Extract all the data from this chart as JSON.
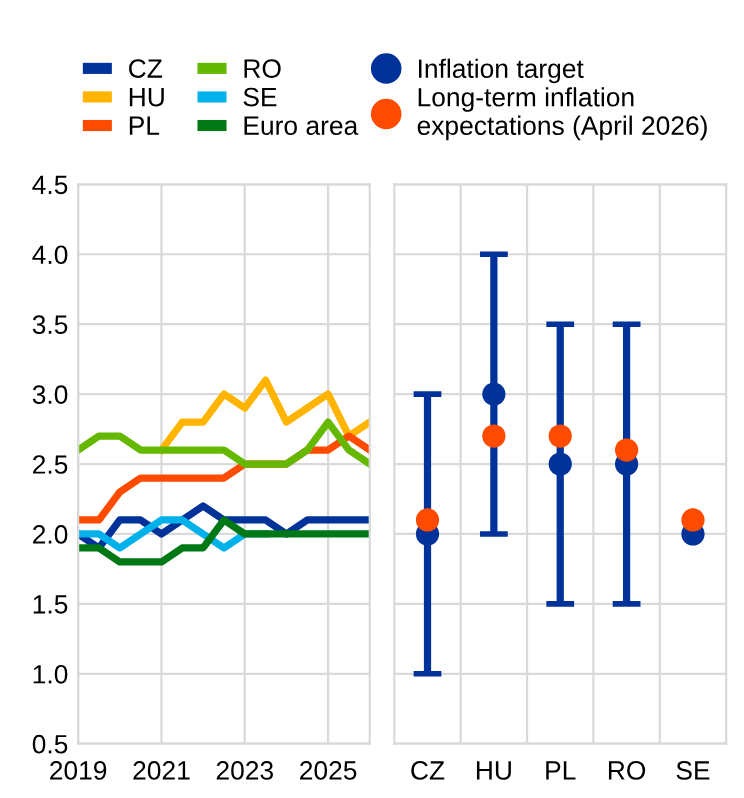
{
  "chart_data": [
    {
      "type": "line",
      "x": [
        2019,
        2019.5,
        2020,
        2020.5,
        2021,
        2021.5,
        2022,
        2022.5,
        2023,
        2023.5,
        2024,
        2024.5,
        2025,
        2025.5,
        2026
      ],
      "xlim": [
        2019,
        2026
      ],
      "xticks": [
        2019,
        2021,
        2023,
        2025
      ],
      "ylim": [
        0.5,
        4.5
      ],
      "yticks": [
        0.5,
        {
          "value": 1,
          "label": "1.0"
        },
        1.5,
        {
          "value": 2,
          "label": "2.0"
        },
        2.5,
        {
          "value": 3,
          "label": "3.0"
        },
        3.5,
        {
          "value": 4,
          "label": "4.0"
        },
        4.5
      ],
      "grid": true,
      "legend": "top",
      "line_style": "solid",
      "marker": "none",
      "series": [
        {
          "name": "CZ",
          "color": "#003299",
          "values": [
            2.0,
            1.9,
            2.1,
            2.1,
            2.0,
            2.1,
            2.2,
            2.1,
            2.1,
            2.1,
            2.0,
            2.1,
            2.1,
            2.1,
            2.1
          ]
        },
        {
          "name": "HU",
          "color": "#ffb400",
          "values": [
            null,
            null,
            null,
            null,
            2.6,
            2.8,
            2.8,
            3.0,
            2.9,
            3.1,
            2.8,
            2.9,
            3.0,
            2.7,
            2.8
          ]
        },
        {
          "name": "PL",
          "color": "#ff4b00",
          "values": [
            2.1,
            2.1,
            2.3,
            2.4,
            2.4,
            2.4,
            2.4,
            2.4,
            2.5,
            2.5,
            2.5,
            2.6,
            2.6,
            2.7,
            2.6
          ]
        },
        {
          "name": "RO",
          "color": "#65b800",
          "values": [
            2.6,
            2.7,
            2.7,
            2.6,
            2.6,
            2.6,
            2.6,
            2.6,
            2.5,
            2.5,
            2.5,
            2.6,
            2.8,
            2.6,
            2.5
          ]
        },
        {
          "name": "SE",
          "color": "#00b1ea",
          "values": [
            2.0,
            2.0,
            1.9,
            2.0,
            2.1,
            2.1,
            2.0,
            1.9,
            2.0,
            2.0,
            null,
            null,
            null,
            null,
            null
          ]
        },
        {
          "name": "Euro area",
          "color": "#007816",
          "values": [
            1.9,
            1.9,
            1.8,
            1.8,
            1.8,
            1.9,
            1.9,
            2.1,
            2.0,
            2.0,
            2.0,
            2.0,
            2.0,
            2.0,
            2.0
          ]
        }
      ]
    },
    {
      "type": "scatter",
      "categories": [
        "CZ",
        "HU",
        "PL",
        "RO",
        "SE"
      ],
      "ylim": [
        0.5,
        4.5
      ],
      "yticks": [
        {
          "value": 0.5,
          "label": null
        },
        {
          "value": 1,
          "label": null
        },
        {
          "value": 1.5,
          "label": null
        },
        {
          "value": 2,
          "label": null
        },
        {
          "value": 2.5,
          "label": null
        },
        {
          "value": 3,
          "label": null
        },
        {
          "value": 3.5,
          "label": null
        },
        {
          "value": 4,
          "label": null
        },
        {
          "value": 4.5,
          "label": null
        }
      ],
      "tick_labels": "x",
      "grid": true,
      "legend": "top",
      "marker": "circle",
      "series": [
        {
          "name": "Inflation target",
          "color": "#003299",
          "values": [
            2.0,
            3.0,
            2.5,
            2.5,
            2.0
          ],
          "errors": [
            [
              1.0,
              3.0
            ],
            [
              2.0,
              4.0
            ],
            [
              1.5,
              3.5
            ],
            [
              1.5,
              3.5
            ],
            null
          ]
        },
        {
          "name": "Long-term inflation expectations (April 2026)",
          "color": "#ff4b00",
          "values": [
            2.1,
            2.7,
            2.7,
            2.6,
            2.1
          ]
        }
      ]
    }
  ]
}
